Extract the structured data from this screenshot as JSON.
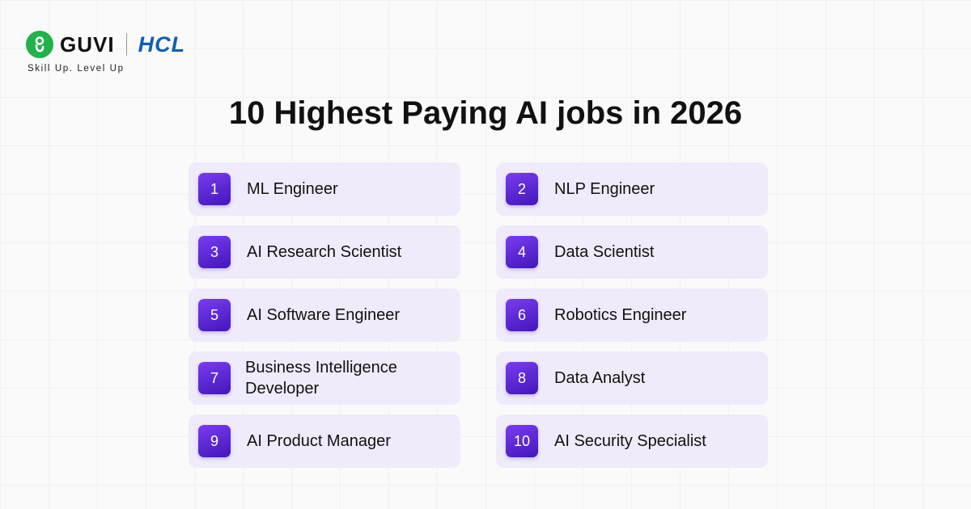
{
  "brand": {
    "guvi_name": "GUVI",
    "guvi_color": "#22b14c",
    "hcl_name": "HCL",
    "hcl_color": "#0f5fb0",
    "tagline": "Skill Up. Level Up"
  },
  "title": "10 Highest Paying AI jobs in 2026",
  "accent_color": "#5a24d6",
  "card_bg": "#efebfb",
  "jobs": [
    {
      "rank": "1",
      "title": "ML Engineer"
    },
    {
      "rank": "2",
      "title": "NLP Engineer"
    },
    {
      "rank": "3",
      "title": "AI Research Scientist"
    },
    {
      "rank": "4",
      "title": "Data Scientist"
    },
    {
      "rank": "5",
      "title": "AI Software Engineer"
    },
    {
      "rank": "6",
      "title": "Robotics Engineer"
    },
    {
      "rank": "7",
      "title": "Business Intelligence Developer"
    },
    {
      "rank": "8",
      "title": "Data Analyst"
    },
    {
      "rank": "9",
      "title": "AI Product Manager"
    },
    {
      "rank": "10",
      "title": "AI Security Specialist"
    }
  ]
}
